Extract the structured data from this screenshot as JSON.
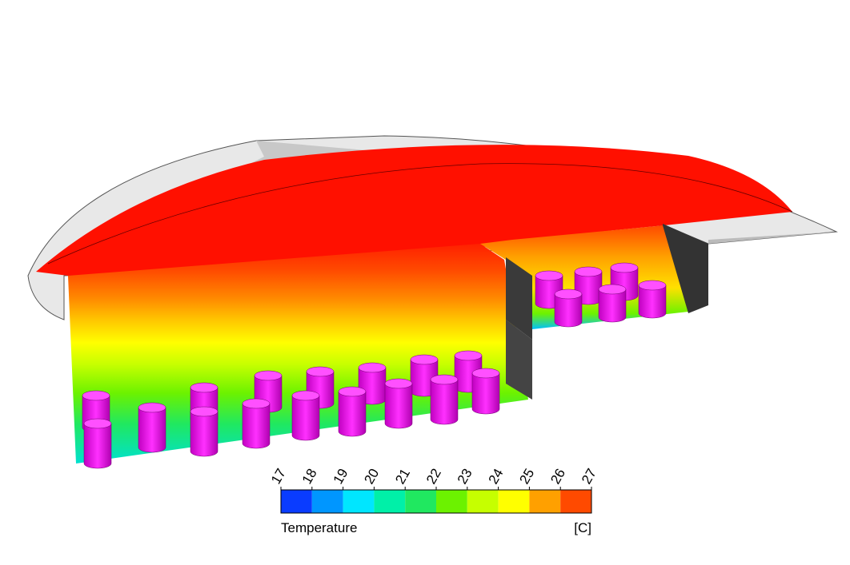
{
  "legend": {
    "ticks": [
      17,
      18,
      19,
      20,
      21,
      22,
      23,
      24,
      25,
      26,
      27
    ],
    "colors": [
      "#0a3cff",
      "#0096ff",
      "#00e6ff",
      "#00f0a8",
      "#20e860",
      "#6cf200",
      "#c6ff00",
      "#ffff00",
      "#ffa000",
      "#ff4a00"
    ],
    "title": "Temperature",
    "unit": "[C]"
  }
}
